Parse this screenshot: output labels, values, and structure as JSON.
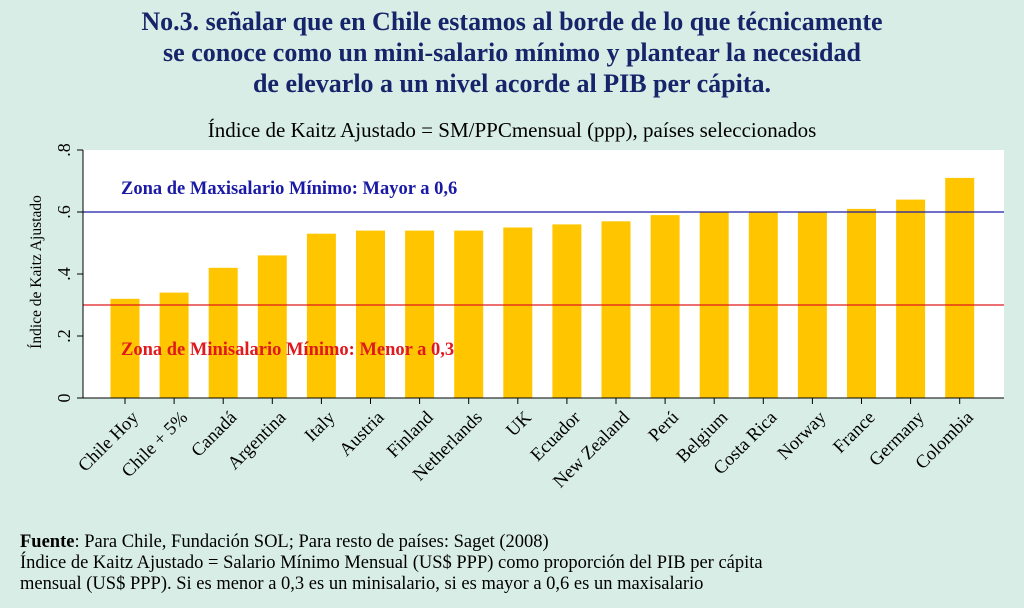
{
  "headline": {
    "line1": "No.3. señalar que en Chile estamos al borde de lo que técnicamente",
    "line2": "se conoce como un mini-salario mínimo y plantear la necesidad",
    "line3": "de elevarlo a un nivel acorde al PIB per cápita."
  },
  "footnote": {
    "source_label": "Fuente",
    "source_text": ": Para Chile, Fundación SOL; Para resto de países: Saget (2008)",
    "line2": "Índice de Kaitz Ajustado = Salario Mínimo Mensual (US$ PPP) como proporción del PIB per cápita",
    "line3": "mensual (US$ PPP). Si es menor a 0,3 es un minisalario, si es mayor a 0,6 es un maxisalario"
  },
  "colors": {
    "background": "#d8ede5",
    "plot_area": "#ffffff",
    "bar": "#ffc600",
    "max_line": "#1a1aa6",
    "min_line": "#e0191e",
    "headline": "#16246a"
  },
  "chart_data": {
    "type": "bar",
    "title": "Índice de Kaitz Ajustado = SM/PPCmensual (ppp), países seleccionados",
    "xlabel": "",
    "ylabel": "Índice de Kaitz Ajustado",
    "ylim": [
      0,
      0.8
    ],
    "yticks": [
      0,
      0.2,
      0.4,
      0.6,
      0.8
    ],
    "ytick_labels": [
      "0",
      ".2",
      ".4",
      ".6",
      ".8"
    ],
    "grid": false,
    "categories": [
      "Chile Hoy",
      "Chile + 5%",
      "Canadá",
      "Argentina",
      "Italy",
      "Austria",
      "Finland",
      "Netherlands",
      "UK",
      "Ecuador",
      "New Zealand",
      "Perú",
      "Belgium",
      "Costa Rica",
      "Norway",
      "France",
      "Germany",
      "Colombia"
    ],
    "values": [
      0.32,
      0.34,
      0.42,
      0.46,
      0.53,
      0.54,
      0.54,
      0.54,
      0.55,
      0.56,
      0.57,
      0.59,
      0.6,
      0.6,
      0.6,
      0.61,
      0.64,
      0.71
    ],
    "reference_lines": [
      {
        "y": 0.6,
        "color": "#1a1aa6",
        "label": "Zona de Maxisalario Mínimo: Mayor a 0,6"
      },
      {
        "y": 0.3,
        "color": "#e0191e",
        "label": "Zona de Minisalario Mínimo: Menor a 0,3"
      }
    ]
  }
}
